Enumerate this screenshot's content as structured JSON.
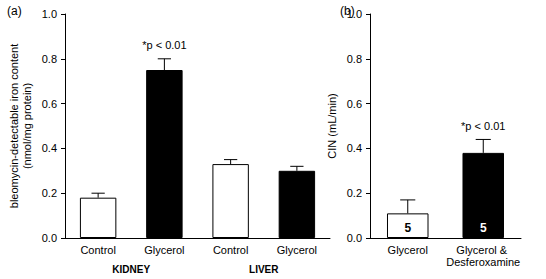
{
  "chart_data": [
    {
      "type": "bar",
      "panel": "(a)",
      "y_label": "bleomycin-detectable iron content\n(nmol/mg protein)",
      "categories": [
        "Control",
        "Glycerol",
        "Control",
        "Glycerol"
      ],
      "groups": [
        {
          "name": "KIDNEY",
          "size": 2
        },
        {
          "name": "LIVER",
          "size": 2
        }
      ],
      "values": [
        0.18,
        0.75,
        0.33,
        0.3
      ],
      "errors": [
        0.02,
        0.05,
        0.02,
        0.02
      ],
      "colors": [
        "#ffffff",
        "#000000",
        "#ffffff",
        "#000000"
      ],
      "ylim": [
        0,
        1
      ],
      "yticks": [
        {
          "value": 0,
          "label": "0.0"
        },
        0.2,
        0.4,
        0.6,
        0.8,
        {
          "value": 1,
          "label": "1.0"
        }
      ],
      "annotations": [
        {
          "text": "*p < 0.01",
          "bar": 1
        }
      ]
    },
    {
      "type": "bar",
      "panel": "(b)",
      "y_label": "CIN (mL/min)",
      "categories": [
        "Glycerol",
        "Glycerol & Desferoxamine"
      ],
      "values": [
        0.11,
        0.38
      ],
      "errors": [
        0.06,
        0.06
      ],
      "n": [
        5,
        5
      ],
      "colors": [
        "#ffffff",
        "#000000"
      ],
      "ylim": [
        0,
        1
      ],
      "yticks": [
        {
          "value": 0,
          "label": "0.0"
        },
        0.2,
        0.4,
        0.6,
        0.8,
        {
          "value": 1,
          "label": "1.0"
        }
      ],
      "annotations": [
        {
          "text": "*p < 0.01",
          "bar": 1
        }
      ]
    }
  ]
}
